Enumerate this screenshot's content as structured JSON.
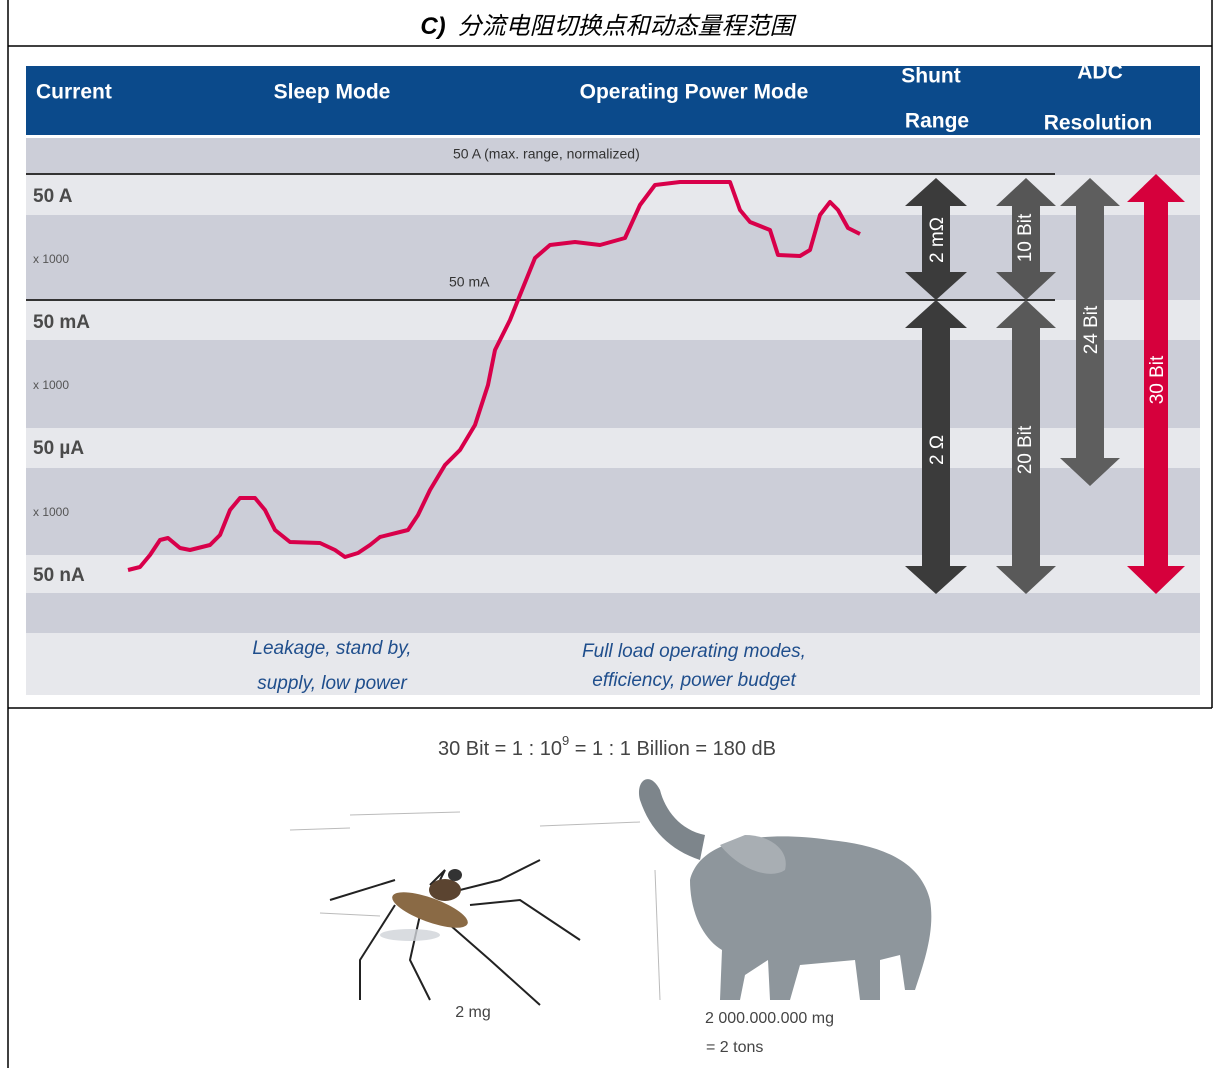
{
  "title": {
    "label": "C)",
    "text": "分流电阻切换点和动态量程范围"
  },
  "header": {
    "current": "Current",
    "sleep": "Sleep Mode",
    "operating": "Operating Power Mode",
    "shunt": [
      "Shunt",
      "Range"
    ],
    "adc": [
      "ADC",
      "Resolution"
    ]
  },
  "rows": [
    "50 A",
    "x 1000",
    "50 mA",
    "x 1000",
    "50 µA",
    "x 1000",
    "50 nA"
  ],
  "annotations": {
    "max_range": "50 A   (max. range, normalized)",
    "switch_point": "50 mA"
  },
  "arrows": {
    "shunt_high": "2 mΩ",
    "shunt_low": "2 Ω",
    "adc_high": "10 Bit",
    "adc_low": "20 Bit",
    "adc_24": "24 Bit",
    "adc_30": "30 Bit"
  },
  "footer": {
    "sleep": [
      "Leakage, stand by,",
      "supply, low power"
    ],
    "operating": [
      "Full load operating modes,",
      "efficiency, power budget"
    ]
  },
  "comparison": {
    "formula_left": "30 Bit = 1 : 10",
    "formula_exp": "9",
    "formula_right": " = 1 : 1 Billion = 180 dB",
    "mosquito": "2 mg",
    "elephant": "2 000.000.000 mg",
    "elephant_tons": "= 2 tons"
  }
}
